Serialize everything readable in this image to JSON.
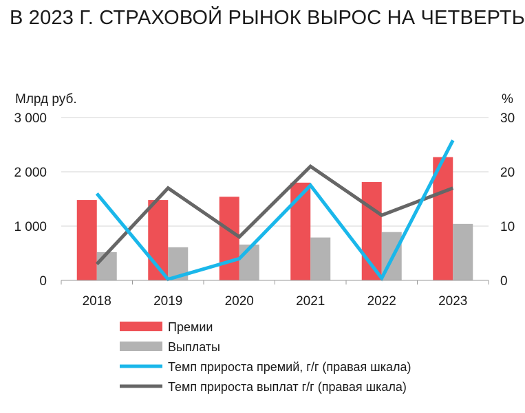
{
  "title": "В 2023 Г. СТРАХОВОЙ РЫНОК ВЫРОС НА ЧЕТВЕРТЬ",
  "chart_data": {
    "type": "bar",
    "categories": [
      "2018",
      "2019",
      "2020",
      "2021",
      "2022",
      "2023"
    ],
    "y_left_label": "Млрд руб.",
    "y_right_label": "%",
    "y_left_ticks": [
      "0",
      "1 000",
      "2 000",
      "3 000"
    ],
    "y_right_ticks": [
      "0",
      "10",
      "20",
      "30"
    ],
    "ylim_left": [
      0,
      3000
    ],
    "ylim_right": [
      0,
      30
    ],
    "grid": true,
    "legend_position": "bottom",
    "series": [
      {
        "name": "Премии",
        "kind": "bar",
        "axis": "left",
        "color": "#ee5055",
        "values": [
          1480,
          1480,
          1540,
          1800,
          1810,
          2270
        ]
      },
      {
        "name": "Выплаты",
        "kind": "bar",
        "axis": "left",
        "color": "#b3b3b3",
        "values": [
          520,
          610,
          660,
          790,
          890,
          1040
        ]
      },
      {
        "name": "Темп прироста премий, г/г (правая шкала)",
        "kind": "line",
        "axis": "right",
        "color": "#1ab7ea",
        "values": [
          16,
          0.2,
          4,
          17.5,
          0.4,
          25.8
        ]
      },
      {
        "name": "Темп прироста выплат г/г (правая шкала)",
        "kind": "line",
        "axis": "right",
        "color": "#666666",
        "values": [
          3,
          17,
          8,
          21,
          12,
          17
        ]
      }
    ]
  }
}
